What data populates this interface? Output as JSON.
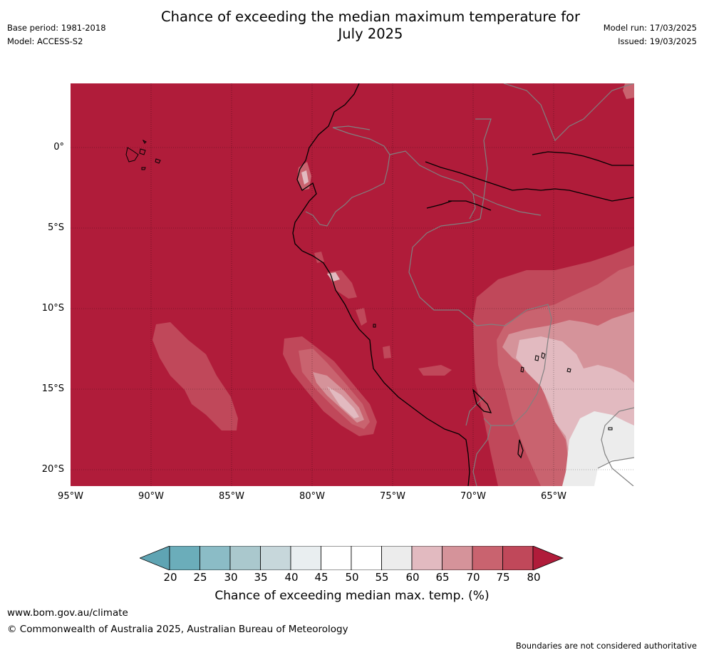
{
  "header": {
    "title_line1": "Chance of exceeding the median maximum temperature for",
    "title_line2": "July 2025",
    "base_period": "Base period: 1981-2018",
    "model": "Model: ACCESS-S2",
    "model_run": "Model run: 17/03/2025",
    "issued": "Issued: 19/03/2025"
  },
  "map": {
    "latitude_labels": [
      "0°",
      "5°S",
      "10°S",
      "15°S",
      "20°S"
    ],
    "longitude_labels": [
      "95°W",
      "90°W",
      "85°W",
      "80°W",
      "75°W",
      "70°W",
      "65°W"
    ],
    "colors": {
      "c80plus": "#b01c3a",
      "c75": "#c0485a",
      "c70": "#c9636f",
      "c65": "#d5939a",
      "c60": "#e2bac0",
      "c55": "#ececec",
      "c50": "#ffffff",
      "coast": "#000000",
      "border": "#808080"
    }
  },
  "colorbar": {
    "ticks": [
      "20",
      "25",
      "30",
      "35",
      "40",
      "45",
      "50",
      "55",
      "60",
      "65",
      "70",
      "75",
      "80"
    ],
    "colors": [
      "#5fa4b3",
      "#6badba",
      "#8bbcc6",
      "#aac8cd",
      "#c7d7db",
      "#e9eef0",
      "#ffffff",
      "#ffffff",
      "#ececec",
      "#e2bac0",
      "#d5939a",
      "#c9636f",
      "#c0485a",
      "#b01c3a"
    ],
    "title": "Chance of exceeding median max. temp. (%)"
  },
  "footer": {
    "url": "www.bom.gov.au/climate",
    "copyright": "© Commonwealth of Australia 2025, Australian Bureau of Meteorology",
    "note": "Boundaries are not considered authoritative"
  }
}
